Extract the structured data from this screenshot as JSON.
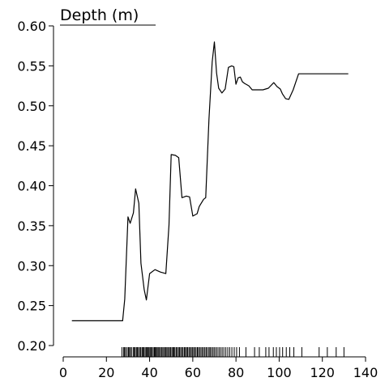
{
  "chart_data": {
    "type": "line",
    "title": "Depth (m)",
    "xlabel": "",
    "ylabel": "",
    "xlim": [
      0,
      140
    ],
    "ylim": [
      0.2,
      0.6
    ],
    "x_ticks": [
      0,
      20,
      40,
      60,
      80,
      100,
      120,
      140
    ],
    "y_ticks": [
      0.2,
      0.25,
      0.3,
      0.35,
      0.4,
      0.45,
      0.5,
      0.55,
      0.6
    ],
    "x_tick_labels": [
      "0",
      "20",
      "40",
      "60",
      "80",
      "100",
      "120",
      "140"
    ],
    "y_tick_labels": [
      "0.20",
      "0.25",
      "0.30",
      "0.35",
      "0.40",
      "0.45",
      "0.50",
      "0.55",
      "0.60"
    ],
    "grid": false,
    "legend": "none",
    "line_color": "#000000",
    "series": [
      {
        "x": [
          4,
          27.5,
          28.5,
          30,
          31,
          32.5,
          33.5,
          35,
          36,
          37.5,
          38.5,
          40,
          42.5,
          45,
          47.5,
          49,
          50,
          52,
          53.5,
          55,
          57,
          58.5,
          60,
          62,
          63,
          65,
          66,
          67.5,
          69,
          70,
          71,
          72,
          73.5,
          75,
          76.5,
          78,
          79,
          80,
          81,
          82,
          83,
          84,
          86,
          87.5,
          89,
          92.5,
          95,
          97.5,
          99,
          100.5,
          101.5,
          103,
          104.5,
          106.5,
          109,
          116.5,
          120,
          132
        ],
        "y": [
          0.231,
          0.231,
          0.258,
          0.361,
          0.353,
          0.366,
          0.396,
          0.378,
          0.303,
          0.27,
          0.257,
          0.29,
          0.295,
          0.292,
          0.29,
          0.351,
          0.439,
          0.438,
          0.435,
          0.385,
          0.387,
          0.386,
          0.362,
          0.365,
          0.374,
          0.383,
          0.385,
          0.483,
          0.555,
          0.58,
          0.541,
          0.522,
          0.516,
          0.521,
          0.548,
          0.55,
          0.549,
          0.527,
          0.535,
          0.536,
          0.53,
          0.528,
          0.525,
          0.52,
          0.52,
          0.52,
          0.522,
          0.529,
          0.524,
          0.521,
          0.515,
          0.509,
          0.508,
          0.52,
          0.54,
          0.54,
          0.54,
          0.54
        ]
      }
    ],
    "rug_x": [
      27.2,
      28.0,
      28.4,
      28.9,
      29.6,
      30.2,
      30.5,
      31.1,
      31.6,
      32.4,
      32.9,
      33.3,
      33.9,
      34.3,
      34.8,
      35.4,
      35.9,
      36.5,
      36.9,
      37.3,
      37.9,
      38.4,
      38.8,
      39.3,
      39.7,
      40.2,
      40.6,
      41.1,
      41.7,
      42.2,
      42.6,
      43.1,
      43.5,
      44.0,
      44.5,
      45.1,
      45.5,
      46.1,
      46.6,
      47.2,
      47.6,
      48.1,
      48.7,
      49.2,
      49.7,
      50.3,
      50.8,
      51.2,
      51.7,
      52.3,
      52.8,
      53.4,
      53.9,
      54.4,
      55.0,
      55.5,
      56.1,
      56.6,
      57.1,
      57.6,
      58.2,
      58.7,
      59.3,
      59.8,
      60.4,
      60.9,
      61.5,
      62.1,
      62.6,
      63.2,
      63.8,
      64.4,
      65.0,
      65.6,
      66.2,
      66.8,
      67.5,
      68.0,
      68.6,
      69.3,
      69.9,
      70.6,
      71.3,
      72.1,
      72.8,
      73.6,
      74.4,
      75.3,
      76.2,
      77.1,
      78.1,
      79.2,
      80.3,
      81.6,
      84.6,
      88.6,
      90.8,
      93.8,
      95.3,
      97.3,
      98.7,
      100.2,
      101.6,
      103.3,
      104.9,
      106.8,
      110.5,
      118.5,
      122.3,
      126.4,
      130.0
    ]
  }
}
